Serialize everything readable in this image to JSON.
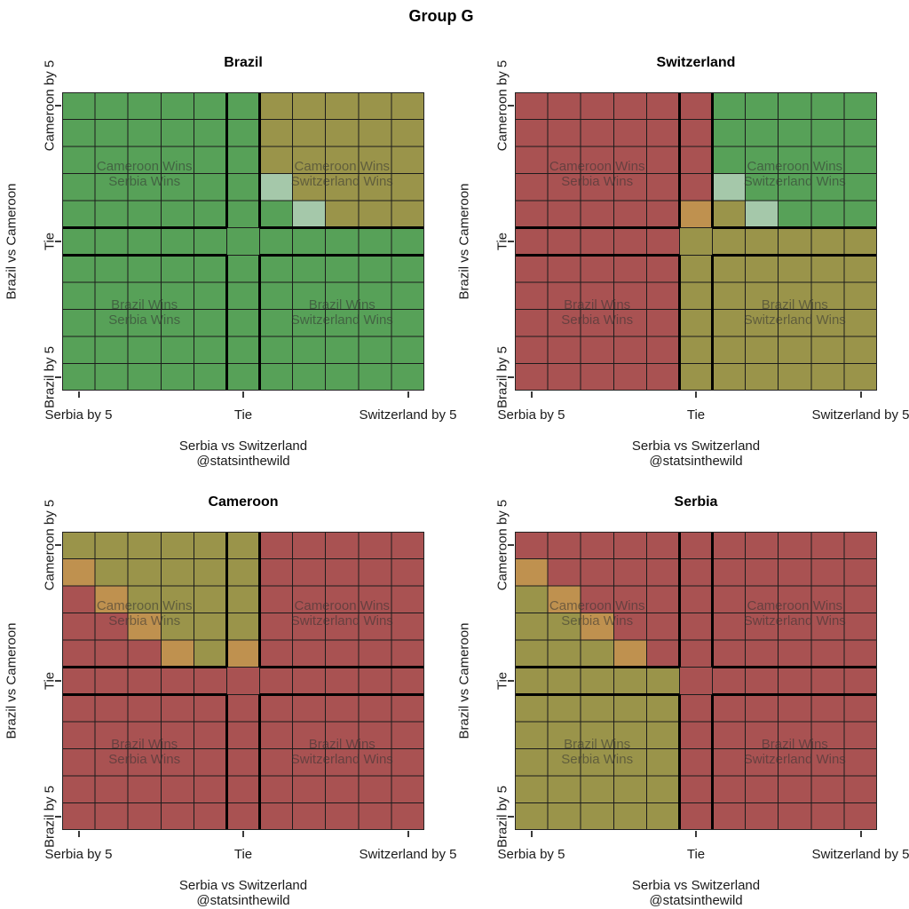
{
  "title": "Group G",
  "axes": {
    "y_label": "Brazil vs Cameroon",
    "y_ticks": [
      "Cameroon by 5",
      "Tie",
      "Brazil by 5"
    ],
    "x_ticks": [
      "Serbia by 5",
      "Tie",
      "Switzerland by 5"
    ],
    "x_label": "Serbia vs Switzerland",
    "watermark": "@statsinthewild"
  },
  "quadrant_labels": {
    "tl": [
      "Cameroon Wins",
      "Serbia Wins"
    ],
    "tr": [
      "Cameroon Wins",
      "Switzerland Wins"
    ],
    "bl": [
      "Brazil Wins",
      "Serbia Wins"
    ],
    "br": [
      "Brazil Wins",
      "Switzerland Wins"
    ]
  },
  "chart_data": {
    "type": "heatmap",
    "grid_size": {
      "rows": 11,
      "cols": 11
    },
    "x_axis_meaning": "Serbia vs Switzerland goal margin (Serbia by 5 ... Tie ... Switzerland by 5)",
    "y_axis_meaning": "Brazil vs Cameroon goal margin (Brazil by 5 ... Tie ... Cameroon by 5)",
    "colors": {
      "G": "#57a158",
      "R": "#a95252",
      "Y": "#9a944a",
      "O": "#bf914f",
      "P": "#a5c8aa"
    },
    "color_legend": {
      "G": "green",
      "R": "red",
      "Y": "olive",
      "O": "orange",
      "P": "pale-green"
    },
    "grid_line_color": "#1c1c1c",
    "divider_color": "#000000",
    "border_color": "#222222",
    "annotation_color": "rgba(50,50,50,0.55)",
    "panels": [
      {
        "title": "Brazil",
        "grid": [
          "GGGGGGYYYYY",
          "GGGGGGYYYYY",
          "GGGGGGYYYYY",
          "GGGGGGPYYYY",
          "GGGGGGGPYYY",
          "GGGGGGGGGGG",
          "GGGGGGGGGGG",
          "GGGGGGGGGGG",
          "GGGGGGGGGGG",
          "GGGGGGGGGGG",
          "GGGGGGGGGGG"
        ]
      },
      {
        "title": "Switzerland",
        "grid": [
          "RRRRRRGGGGG",
          "RRRRRRGGGGG",
          "RRRRRRGGGGG",
          "RRRRRRPGGGG",
          "RRRRROYPGGG",
          "RRRRRYYYYYY",
          "RRRRRYYYYYY",
          "RRRRRYYYYYY",
          "RRRRRYYYYYY",
          "RRRRRYYYYYY",
          "RRRRRYYYYYY"
        ]
      },
      {
        "title": "Cameroon",
        "grid": [
          "YYYYYYRRRRR",
          "OYYYYYRRRRR",
          "ROYYYYRRRRR",
          "RROYYYRRRRR",
          "RRROYORRRRR",
          "RRRRRRRRRRR",
          "RRRRRRRRRRR",
          "RRRRRRRRRRR",
          "RRRRRRRRRRR",
          "RRRRRRRRRRR",
          "RRRRRRRRRRR"
        ]
      },
      {
        "title": "Serbia",
        "grid": [
          "RRRRRRRRRRR",
          "ORRRRRRRRRR",
          "YORRRRRRRRR",
          "YYORRRRRRRR",
          "YYYORRRRRRR",
          "YYYYYRRRRRR",
          "YYYYYRRRRRR",
          "YYYYYRRRRRR",
          "YYYYYRRRRRR",
          "YYYYYRRRRRR",
          "YYYYYRRRRRR"
        ]
      }
    ]
  }
}
